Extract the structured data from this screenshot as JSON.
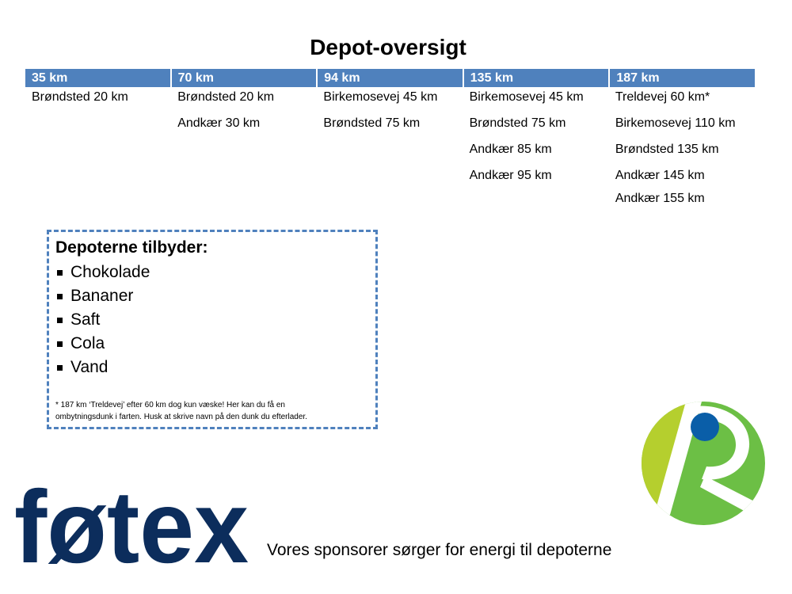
{
  "title": "Depot-oversigt",
  "table": {
    "headers": [
      "35 km",
      "70 km",
      "94 km",
      "135 km",
      "187 km"
    ],
    "columns": [
      [
        "Brøndsted 20 km"
      ],
      [
        "Brøndsted 20 km",
        "Andkær 30 km"
      ],
      [
        "Birkemosevej 45 km",
        "Brøndsted 75 km"
      ],
      [
        "Birkemosevej 45 km",
        "Brøndsted 75 km",
        "Andkær 85 km",
        "Andkær 95 km"
      ],
      [
        "Treldevej 60 km*",
        "Birkemosevej 110 km",
        "Brøndsted 135 km",
        "Andkær 145 km",
        "Andkær 155 km"
      ]
    ]
  },
  "offers": {
    "heading": "Depoterne tilbyder:",
    "items": [
      "Chokolade",
      "Bananer",
      "Saft",
      "Cola",
      "Vand"
    ],
    "footnote_line1": "* 187 km ‘Treldevej’ efter 60 km dog kun væske! Her kan du få en",
    "footnote_line2": "ombytningsdunk i farten. Husk at skrive navn på den dunk du efterlader."
  },
  "sponsor": {
    "logo_text": "føtex",
    "text": "Vores sponsorer sørger for energi til depoterne"
  },
  "colors": {
    "header_blue": "#4f81bd",
    "fotex_navy": "#0c2d5c",
    "logo_blue": "#0a5ea8",
    "logo_lime": "#b5cf2e",
    "logo_green": "#6cbf45"
  }
}
